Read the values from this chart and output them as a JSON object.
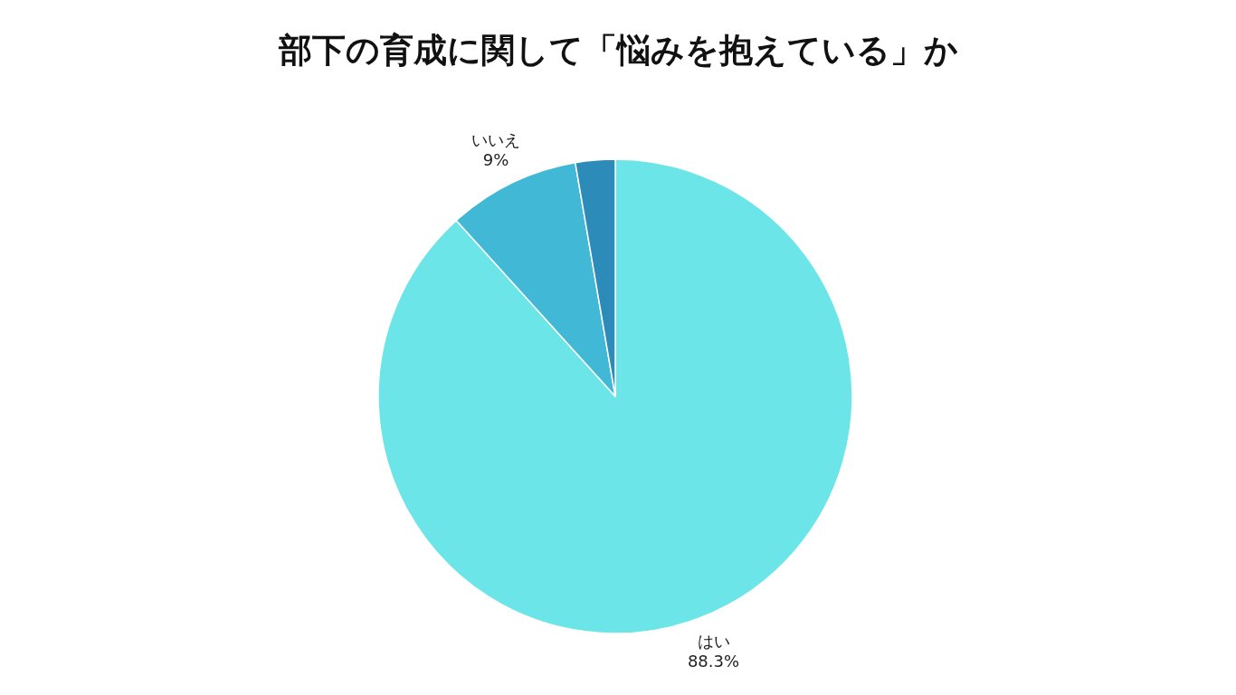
{
  "chart_data": {
    "type": "pie",
    "title": "部下の育成に関して「悩みを抱えている」か",
    "categories": [
      "はい",
      "いいえ",
      null
    ],
    "values": [
      88.3,
      9,
      2.7
    ],
    "value_labels": [
      "88.3%",
      "9%",
      null
    ],
    "colors": [
      "#6ce5e8",
      "#41b8d5",
      "#2d8bba"
    ]
  }
}
